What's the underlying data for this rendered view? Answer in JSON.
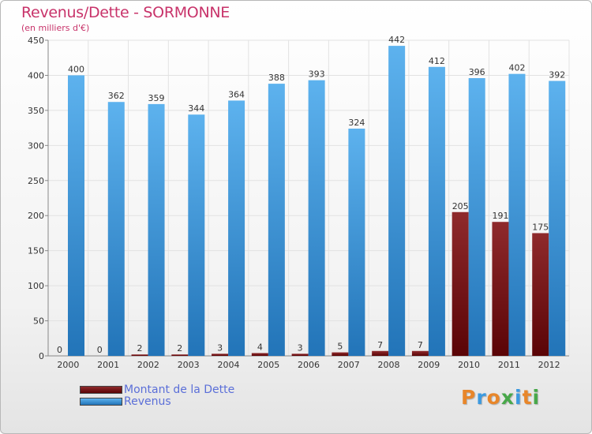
{
  "title": "Revenus/Dette - SORMONNE",
  "subtitle": "(en milliers d'€)",
  "chart_data": {
    "type": "bar",
    "title": "Revenus/Dette - SORMONNE",
    "ylabel": "(en milliers d'€)",
    "categories": [
      "2000",
      "2001",
      "2002",
      "2003",
      "2004",
      "2005",
      "2006",
      "2007",
      "2008",
      "2009",
      "2010",
      "2011",
      "2012"
    ],
    "series": [
      {
        "name": "Montant de la Dette",
        "values": [
          0,
          0,
          2,
          2,
          3,
          4,
          3,
          5,
          7,
          7,
          205,
          191,
          175
        ],
        "color": "#6e0d12"
      },
      {
        "name": "Revenus",
        "values": [
          400,
          362,
          359,
          344,
          364,
          388,
          393,
          324,
          442,
          412,
          396,
          402,
          392
        ],
        "color": "#3c9ae0"
      }
    ],
    "ylim": [
      0,
      450
    ],
    "yticks": [
      0,
      50,
      100,
      150,
      200,
      250,
      300,
      350,
      400,
      450
    ],
    "grid": true,
    "legend_position": "bottom-left"
  },
  "legend": {
    "items": [
      {
        "label": "Montant de la Dette",
        "color": "#6e0d12"
      },
      {
        "label": "Revenus",
        "color": "#3c9ae0"
      }
    ]
  },
  "logo": {
    "letters": [
      "P",
      "r",
      "o",
      "x",
      "i",
      "t",
      "i"
    ],
    "colors": [
      "#e8862a",
      "#3c9ae0",
      "#e8862a",
      "#48a84a",
      "#3c9ae0",
      "#e8862a",
      "#48a84a"
    ]
  }
}
